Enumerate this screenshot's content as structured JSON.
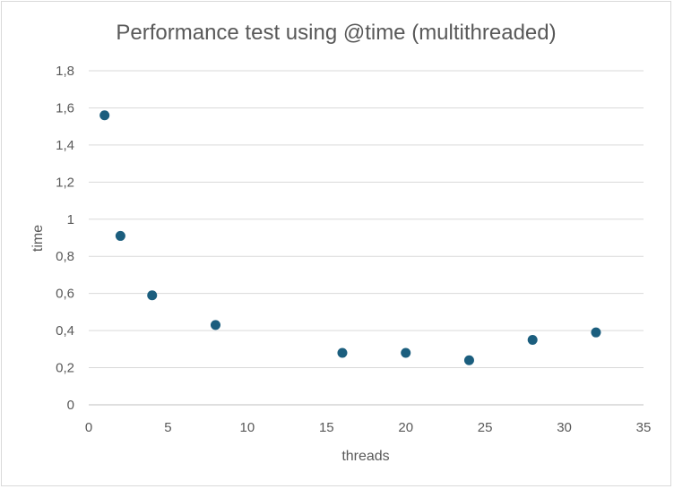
{
  "chart_data": {
    "type": "scatter",
    "title": "Performance test using @time (multithreaded)",
    "xlabel": "threads",
    "ylabel": "time",
    "xlim": [
      0,
      35
    ],
    "ylim": [
      0,
      1.8
    ],
    "x_ticks": [
      "0",
      "5",
      "10",
      "15",
      "20",
      "25",
      "30",
      "35"
    ],
    "y_ticks": [
      "0",
      "0,2",
      "0,4",
      "0,6",
      "0,8",
      "1",
      "1,2",
      "1,4",
      "1,6",
      "1,8"
    ],
    "x_tick_values": [
      0,
      5,
      10,
      15,
      20,
      25,
      30,
      35
    ],
    "y_tick_values": [
      0,
      0.2,
      0.4,
      0.6,
      0.8,
      1.0,
      1.2,
      1.4,
      1.6,
      1.8
    ],
    "grid": true,
    "legend": "none",
    "series": [
      {
        "color": "#1b5e7e",
        "points": [
          {
            "x": 1,
            "y": 1.56
          },
          {
            "x": 2,
            "y": 0.91
          },
          {
            "x": 4,
            "y": 0.59
          },
          {
            "x": 8,
            "y": 0.43
          },
          {
            "x": 16,
            "y": 0.28
          },
          {
            "x": 20,
            "y": 0.28
          },
          {
            "x": 24,
            "y": 0.24
          },
          {
            "x": 28,
            "y": 0.35
          },
          {
            "x": 32,
            "y": 0.39
          }
        ]
      }
    ]
  }
}
